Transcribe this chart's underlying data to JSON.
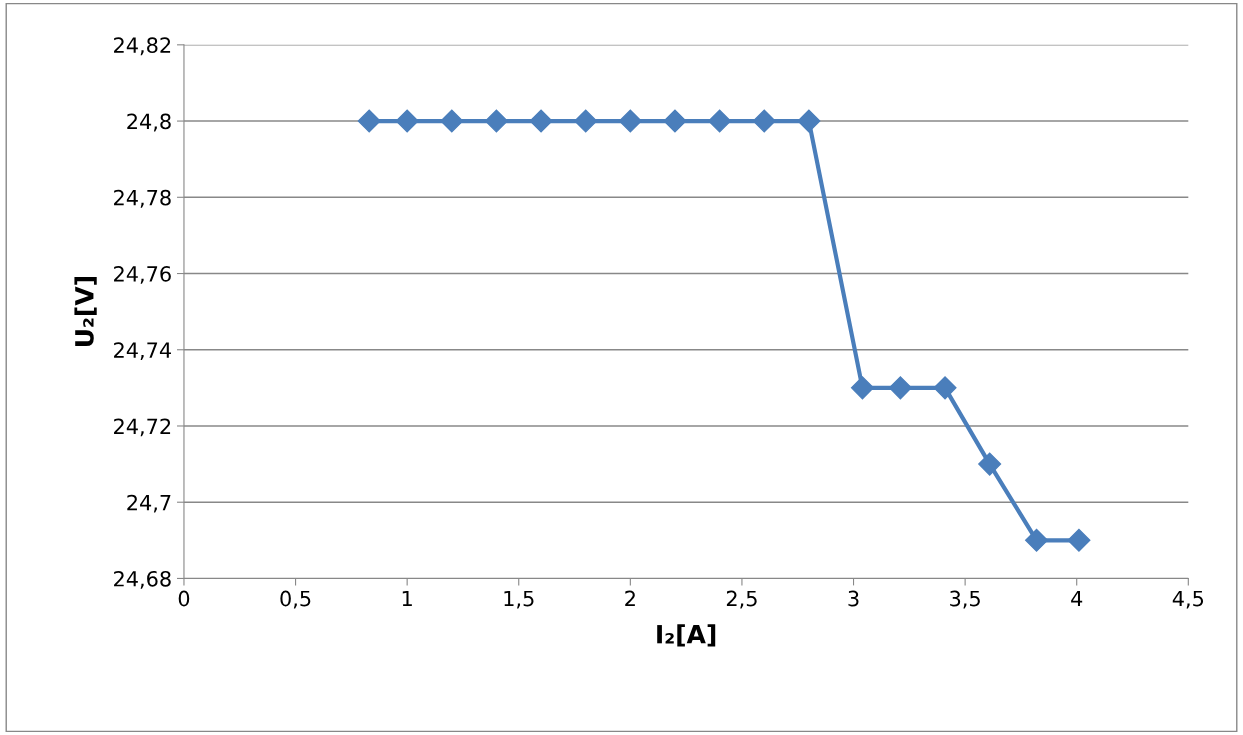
{
  "chart_data": {
    "type": "line",
    "xlabel": "I₂[A]",
    "ylabel": "U₂[V]",
    "x": [
      0.83,
      1.0,
      1.2,
      1.4,
      1.6,
      1.8,
      2.0,
      2.2,
      2.4,
      2.6,
      2.8,
      3.04,
      3.21,
      3.41,
      3.61,
      3.82,
      4.01
    ],
    "series": [
      {
        "color": "#4a7ebb",
        "values": [
          24.8,
          24.8,
          24.8,
          24.8,
          24.8,
          24.8,
          24.8,
          24.8,
          24.8,
          24.8,
          24.8,
          24.73,
          24.73,
          24.73,
          24.71,
          24.69,
          24.69
        ]
      }
    ],
    "xlim": [
      0,
      4.5
    ],
    "xticks": [
      0,
      {
        "value": 0.5,
        "label": "0,5"
      },
      1,
      {
        "value": 1.5,
        "label": "1,5"
      },
      2,
      {
        "value": 2.5,
        "label": "2,5"
      },
      3,
      {
        "value": 3.5,
        "label": "3,5"
      },
      4,
      {
        "value": 4.5,
        "label": "4,5"
      }
    ],
    "ylim": [
      24.68,
      24.82
    ],
    "yticks": [
      {
        "value": 24.68,
        "label": "24,68"
      },
      {
        "value": 24.7,
        "label": "24,7"
      },
      {
        "value": 24.72,
        "label": "24,72"
      },
      {
        "value": 24.74,
        "label": "24,74"
      },
      {
        "value": 24.76,
        "label": "24,76"
      },
      {
        "value": 24.78,
        "label": "24,78"
      },
      {
        "value": 24.8,
        "label": "24,8"
      },
      {
        "value": 24.82,
        "label": "24,82"
      }
    ],
    "grid": "y",
    "marker": "diamond",
    "line_style": "solid"
  }
}
